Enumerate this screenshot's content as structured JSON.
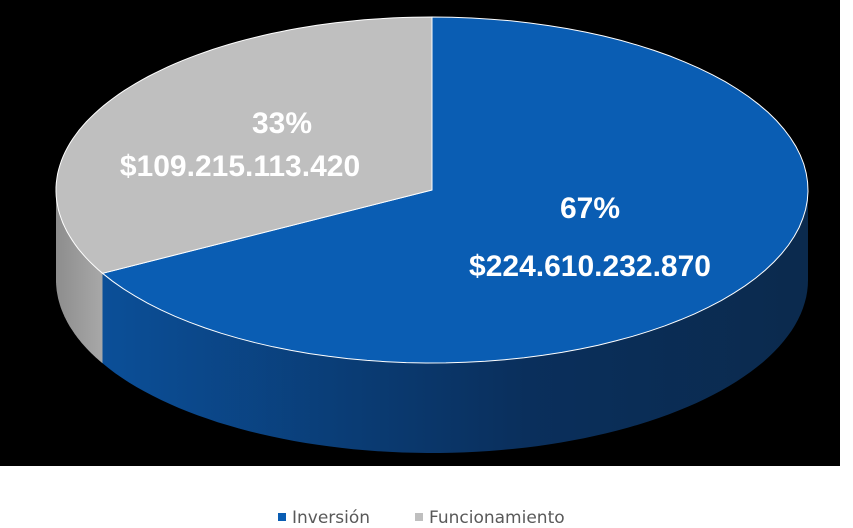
{
  "chart_data": {
    "type": "pie",
    "three_d": true,
    "categories": [
      "Inversión",
      "Funcionamiento"
    ],
    "values": [
      67,
      33
    ],
    "value_labels": [
      "67%",
      "33%"
    ],
    "amounts": [
      224610232870,
      109215113420
    ],
    "amount_labels": [
      "$224.610.232.870",
      "$109.215.113.420"
    ],
    "colors": [
      "#0a5db3",
      "#bfbfbf"
    ],
    "legend": "bottom"
  }
}
